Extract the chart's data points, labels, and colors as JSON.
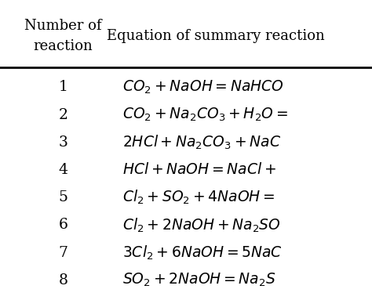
{
  "col1_header_line1": "Number of",
  "col1_header_line2": "reaction",
  "col2_header": "Equation of summary reaction",
  "row_numbers": [
    "1",
    "2",
    "3",
    "4",
    "5",
    "6",
    "7",
    "8"
  ],
  "equations": [
    "$\\mathit{CO_2 + NaOH = NaHCO}$",
    "$\\mathit{CO_2 + Na_2CO_3 + H_2O =}$",
    "$\\mathit{2HCl + Na_2CO_3 + NaC}$",
    "$\\mathit{HCl + NaOH = NaCl +}$",
    "$\\mathit{Cl_2 + SO_2 + 4NaOH =}$",
    "$\\mathit{Cl_2 + 2NaOH + Na_2SO}$",
    "$\\mathit{3Cl_2 + 6NaOH = 5NaC}$",
    "$\\mathit{SO_2 + 2NaOH = Na_2S}$"
  ],
  "header_color": "#000000",
  "row_text_color": "#000000",
  "bg_color": "#ffffff",
  "fig_width": 4.74,
  "fig_height": 3.83,
  "dpi": 100
}
